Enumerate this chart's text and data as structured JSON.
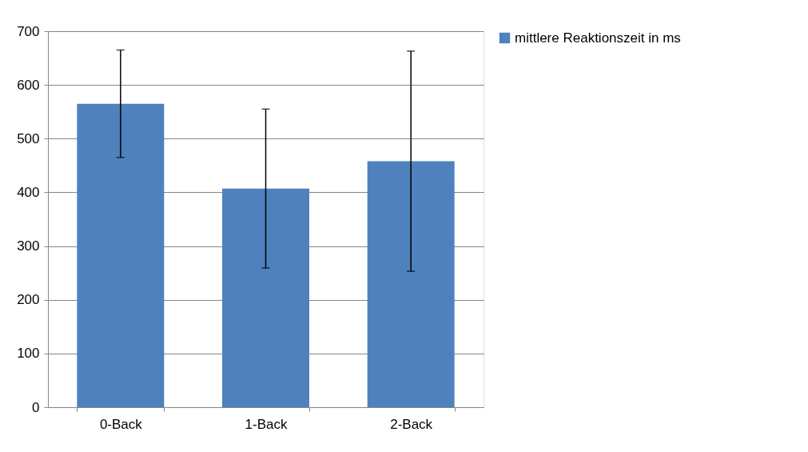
{
  "chart_data": {
    "type": "bar",
    "categories": [
      "0-Back",
      "1-Back",
      "2-Back"
    ],
    "series": [
      {
        "name": "mittlere Reaktionszeit in ms",
        "color": "#4f81bd",
        "values": [
          565,
          407,
          458
        ],
        "errors": [
          100,
          148,
          205
        ]
      }
    ],
    "ylim": [
      0,
      700
    ],
    "yticks": [
      0,
      100,
      200,
      300,
      400,
      500,
      600,
      700
    ],
    "grid": "y",
    "legend": "right"
  }
}
